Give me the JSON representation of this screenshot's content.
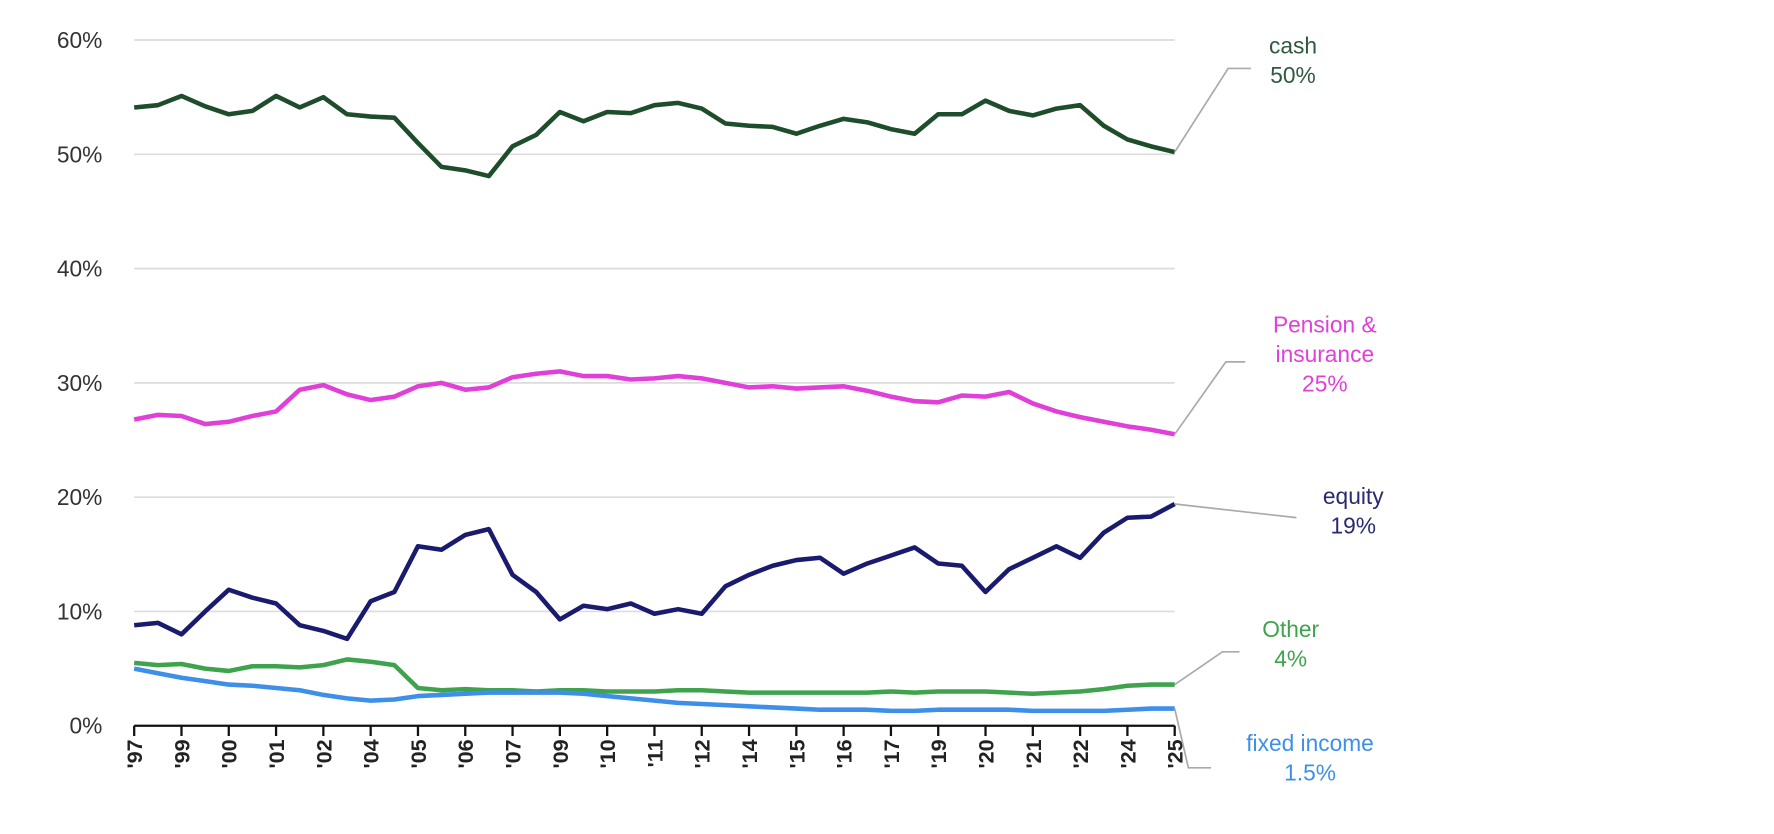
{
  "chart_data": {
    "type": "line",
    "title": "",
    "xlabel": "",
    "ylabel": "",
    "ylim": [
      0,
      60
    ],
    "yticks": [
      "0%",
      "10%",
      "20%",
      "30%",
      "40%",
      "50%",
      "60%"
    ],
    "ytick_values": [
      0,
      10,
      20,
      30,
      40,
      50,
      60
    ],
    "x_tick_labels": [
      "'97",
      "'99",
      "'00",
      "'01",
      "'02",
      "'04",
      "'05",
      "'06",
      "'07",
      "'09",
      "'10",
      "'11",
      "'12",
      "'14",
      "'15",
      "'16",
      "'17",
      "'19",
      "'20",
      "'21",
      "'22",
      "'24",
      "'25"
    ],
    "grid": true,
    "legend": "end-of-line callouts on the right",
    "series": [
      {
        "name": "cash",
        "end_label": "50%",
        "color": "#1e4d2b",
        "label_color": "#2f5a40",
        "values": [
          54.1,
          54.3,
          55.1,
          54.2,
          53.5,
          53.8,
          55.1,
          54.1,
          55.0,
          53.5,
          53.3,
          53.2,
          51.0,
          48.9,
          48.6,
          48.1,
          50.7,
          51.7,
          53.7,
          52.9,
          53.7,
          53.6,
          54.3,
          54.5,
          54.0,
          52.7,
          52.5,
          52.4,
          51.8,
          52.5,
          53.1,
          52.8,
          52.2,
          51.8,
          53.5,
          53.5,
          54.7,
          53.8,
          53.4,
          54.0,
          54.3,
          52.5,
          51.3,
          50.7,
          50.2
        ]
      },
      {
        "name": "Pension & insurance",
        "name_lines": [
          "Pension &",
          "insurance"
        ],
        "end_label": "25%",
        "color": "#e03fd8",
        "label_color": "#e03fd8",
        "values": [
          26.8,
          27.2,
          27.1,
          26.4,
          26.6,
          27.1,
          27.5,
          29.4,
          29.8,
          29.0,
          28.5,
          28.8,
          29.7,
          30.0,
          29.4,
          29.6,
          30.5,
          30.8,
          31.0,
          30.6,
          30.6,
          30.3,
          30.4,
          30.6,
          30.4,
          30.0,
          29.6,
          29.7,
          29.5,
          29.6,
          29.7,
          29.3,
          28.8,
          28.4,
          28.3,
          28.9,
          28.8,
          29.2,
          28.2,
          27.5,
          27.0,
          26.6,
          26.2,
          25.9,
          25.5
        ]
      },
      {
        "name": "equity",
        "end_label": "19%",
        "color": "#1a1a6e",
        "label_color": "#2a2a70",
        "values": [
          8.8,
          9.0,
          8.0,
          10.0,
          11.9,
          11.2,
          10.7,
          8.8,
          8.3,
          7.6,
          10.9,
          11.7,
          15.7,
          15.4,
          16.7,
          17.2,
          13.2,
          11.7,
          9.3,
          10.5,
          10.2,
          10.7,
          9.8,
          10.2,
          9.8,
          12.2,
          13.2,
          14.0,
          14.5,
          14.7,
          13.3,
          14.2,
          14.9,
          15.6,
          14.2,
          14.0,
          11.7,
          13.7,
          14.7,
          15.7,
          14.7,
          16.9,
          18.2,
          18.3,
          19.4
        ]
      },
      {
        "name": "Other",
        "end_label": "4%",
        "color": "#3fa34d",
        "label_color": "#3fa34d",
        "values": [
          5.5,
          5.3,
          5.4,
          5.0,
          4.8,
          5.2,
          5.2,
          5.1,
          5.3,
          5.8,
          5.6,
          5.3,
          3.3,
          3.1,
          3.2,
          3.1,
          3.1,
          3.0,
          3.1,
          3.1,
          3.0,
          3.0,
          3.0,
          3.1,
          3.1,
          3.0,
          2.9,
          2.9,
          2.9,
          2.9,
          2.9,
          2.9,
          3.0,
          2.9,
          3.0,
          3.0,
          3.0,
          2.9,
          2.8,
          2.9,
          3.0,
          3.2,
          3.5,
          3.6,
          3.6
        ]
      },
      {
        "name": "fixed income",
        "end_label": "1.5%",
        "color": "#3d8fe8",
        "label_color": "#3d8fe8",
        "values": [
          5.0,
          4.6,
          4.2,
          3.9,
          3.6,
          3.5,
          3.3,
          3.1,
          2.7,
          2.4,
          2.2,
          2.3,
          2.6,
          2.7,
          2.8,
          2.9,
          2.9,
          2.9,
          2.9,
          2.8,
          2.6,
          2.4,
          2.2,
          2.0,
          1.9,
          1.8,
          1.7,
          1.6,
          1.5,
          1.4,
          1.4,
          1.4,
          1.3,
          1.3,
          1.4,
          1.4,
          1.4,
          1.4,
          1.3,
          1.3,
          1.3,
          1.3,
          1.4,
          1.5,
          1.5
        ]
      }
    ]
  }
}
